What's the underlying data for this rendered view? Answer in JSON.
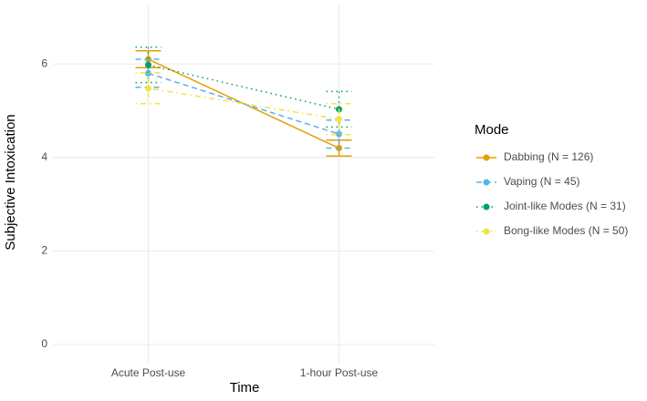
{
  "chart_data": {
    "type": "line",
    "x_label": "Time",
    "y_label": "Subjective Intoxication",
    "categories": [
      "Acute Post-use",
      "1-hour Post-use"
    ],
    "series": [
      {
        "name": "Dabbing (N = 126)",
        "color": "#E69F00",
        "dash": "solid",
        "values": [
          6.1,
          4.2
        ],
        "errors": [
          0.18,
          0.17
        ]
      },
      {
        "name": "Vaping (N = 45)",
        "color": "#56B4E9",
        "dash": "dashed",
        "values": [
          5.8,
          4.5
        ],
        "errors": [
          0.3,
          0.3
        ]
      },
      {
        "name": "Joint-like Modes (N = 31)",
        "color": "#009E73",
        "dash": "dotted",
        "values": [
          5.98,
          5.03
        ],
        "errors": [
          0.38,
          0.38
        ]
      },
      {
        "name": "Bong-like Modes (N = 50)",
        "color": "#F0E442",
        "dash": "dotdash",
        "values": [
          5.48,
          4.82
        ],
        "errors": [
          0.33,
          0.33
        ]
      }
    ],
    "legend_title": "Mode",
    "legend": "right",
    "ylim": [
      -0.39,
      7.27
    ],
    "yticks": [
      0,
      2,
      4,
      6
    ],
    "grid": true
  }
}
